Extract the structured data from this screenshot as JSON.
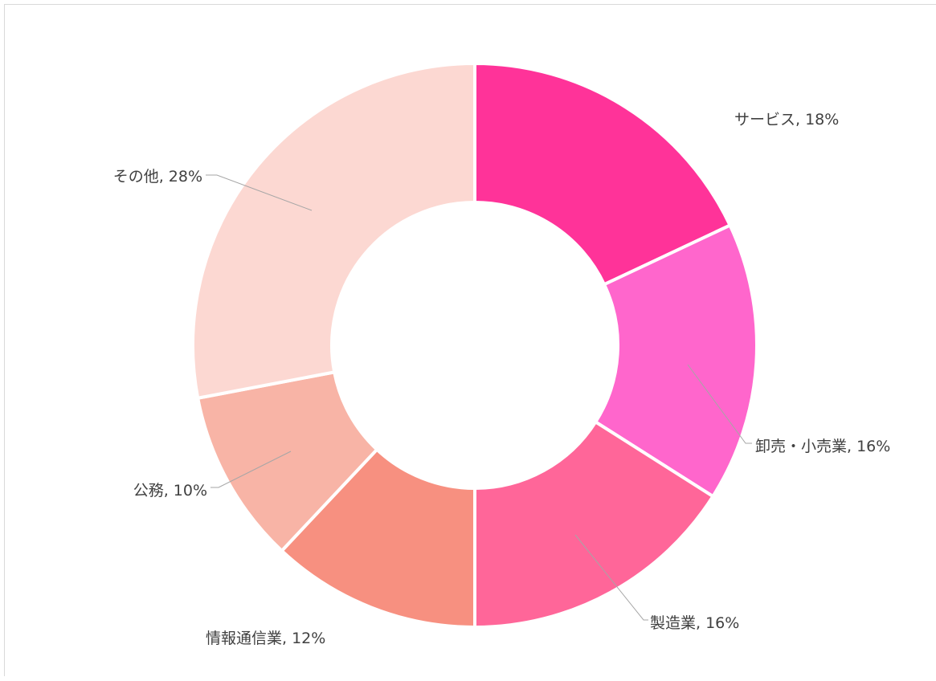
{
  "chart_data": {
    "type": "pie",
    "variant": "doughnut",
    "title": "",
    "start_angle_deg": 0,
    "direction": "clockwise",
    "legend": "none",
    "slices": [
      {
        "label": "サービス",
        "value": 18,
        "color": "#FF3399",
        "text": "サービス, 18%"
      },
      {
        "label": "卸売・小売業",
        "value": 16,
        "color": "#FF66CC",
        "text": "卸売・小売業, 16%"
      },
      {
        "label": "製造業",
        "value": 16,
        "color": "#FF6699",
        "text": "製造業, 16%"
      },
      {
        "label": "情報通信業",
        "value": 12,
        "color": "#F79080",
        "text": "情報通信業, 12%"
      },
      {
        "label": "公務",
        "value": 10,
        "color": "#F8B4A6",
        "text": "公務, 10%"
      },
      {
        "label": "その他",
        "value": 28,
        "color": "#FCD8D2",
        "text": "その他, 28%"
      }
    ]
  }
}
